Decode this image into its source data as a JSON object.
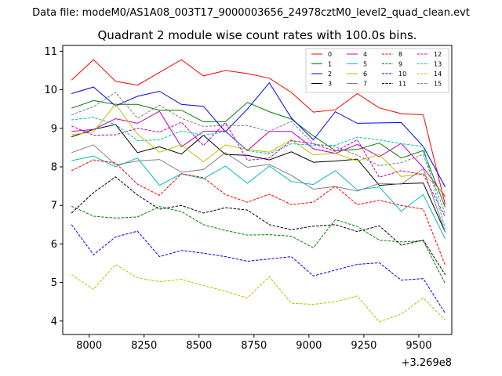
{
  "chart_data": {
    "type": "line",
    "suptitle": "Data file: modeM0/AS1A08_003T17_9000003656_24978cztM0_level2_quad_clean.evt",
    "title": "Quadrant 2 module wise count rates with 100.0s bins.",
    "xlabel": "",
    "ylabel": "",
    "x_offset_label": "+3.269e8",
    "xlim": [
      7880,
      9650
    ],
    "ylim": [
      3.65,
      11.15
    ],
    "xticks": [
      8000,
      8250,
      8500,
      8750,
      9000,
      9250,
      9500
    ],
    "yticks": [
      4,
      5,
      6,
      7,
      8,
      9,
      10,
      11
    ],
    "legend_position": "upper-right",
    "legend_columns": 4,
    "x": [
      7920,
      8020,
      8120,
      8220,
      8320,
      8420,
      8520,
      8620,
      8720,
      8820,
      8920,
      9020,
      9120,
      9220,
      9320,
      9420,
      9520,
      9620
    ],
    "series": [
      {
        "name": "0",
        "color": "#ff0000",
        "dash": "solid",
        "values": [
          10.25,
          10.78,
          10.22,
          10.12,
          10.45,
          10.78,
          10.36,
          10.5,
          10.42,
          10.3,
          9.93,
          9.42,
          9.48,
          9.9,
          9.53,
          9.38,
          9.35,
          7.02
        ]
      },
      {
        "name": "1",
        "color": "#008000",
        "dash": "solid",
        "values": [
          9.52,
          9.72,
          9.62,
          9.62,
          9.47,
          9.47,
          9.17,
          9.17,
          9.67,
          9.43,
          9.24,
          8.8,
          8.42,
          8.45,
          8.62,
          8.23,
          8.42,
          6.95
        ]
      },
      {
        "name": "2",
        "color": "#0000ff",
        "dash": "solid",
        "values": [
          9.9,
          10.07,
          9.58,
          9.83,
          9.96,
          9.62,
          9.57,
          8.91,
          9.5,
          10.18,
          9.27,
          8.7,
          9.43,
          9.13,
          9.14,
          9.15,
          8.53,
          7.48
        ]
      },
      {
        "name": "3",
        "color": "#000000",
        "dash": "solid",
        "values": [
          8.78,
          8.97,
          9.1,
          8.37,
          8.52,
          8.33,
          8.82,
          8.32,
          8.3,
          8.18,
          8.39,
          8.12,
          8.15,
          8.2,
          7.52,
          7.56,
          7.58,
          6.3
        ]
      },
      {
        "name": "4",
        "color": "#c000c0",
        "dash": "solid",
        "values": [
          8.92,
          8.97,
          9.25,
          9.13,
          9.44,
          8.52,
          8.92,
          8.93,
          8.42,
          8.92,
          8.92,
          8.47,
          8.35,
          8.58,
          8.26,
          8.61,
          7.98,
          7.22
        ]
      },
      {
        "name": "5",
        "color": "#00bfbf",
        "dash": "solid",
        "values": [
          8.16,
          8.28,
          8.0,
          8.23,
          7.52,
          7.82,
          7.69,
          8.02,
          7.57,
          8.02,
          7.62,
          7.54,
          7.9,
          7.4,
          7.48,
          6.85,
          7.28,
          6.13
        ]
      },
      {
        "name": "6",
        "color": "#bfbf00",
        "dash": "solid",
        "values": [
          8.84,
          8.9,
          9.63,
          8.85,
          8.38,
          8.57,
          8.13,
          8.57,
          8.45,
          8.38,
          8.7,
          8.31,
          8.35,
          8.15,
          8.32,
          7.75,
          7.82,
          7.27
        ]
      },
      {
        "name": "7",
        "color": "#808080",
        "dash": "solid",
        "values": [
          8.37,
          8.57,
          8.05,
          8.15,
          8.19,
          7.86,
          7.93,
          8.37,
          7.99,
          8.06,
          7.78,
          7.42,
          7.49,
          7.37,
          7.57,
          7.55,
          7.95,
          6.3
        ]
      },
      {
        "name": "8",
        "color": "#ff0000",
        "dash": "dashed",
        "values": [
          7.9,
          8.18,
          8.1,
          7.55,
          7.26,
          7.82,
          7.72,
          7.28,
          7.08,
          7.29,
          7.02,
          7.08,
          7.5,
          7.02,
          7.13,
          7.0,
          6.9,
          5.45
        ]
      },
      {
        "name": "9",
        "color": "#008000",
        "dash": "dashed",
        "values": [
          6.98,
          6.72,
          6.67,
          6.7,
          6.97,
          6.84,
          6.5,
          6.35,
          6.23,
          6.24,
          6.2,
          5.9,
          6.63,
          6.45,
          6.1,
          6.05,
          6.08,
          4.97
        ]
      },
      {
        "name": "10",
        "color": "#0000ff",
        "dash": "dashed",
        "values": [
          6.5,
          5.72,
          6.18,
          6.33,
          5.67,
          5.83,
          5.76,
          5.67,
          5.55,
          5.61,
          5.67,
          5.17,
          5.32,
          5.47,
          5.51,
          5.06,
          5.1,
          4.2
        ]
      },
      {
        "name": "11",
        "color": "#000000",
        "dash": "dashed",
        "values": [
          6.8,
          7.33,
          7.74,
          7.27,
          6.9,
          7.0,
          6.8,
          6.94,
          6.88,
          6.5,
          6.37,
          6.46,
          6.5,
          6.32,
          6.47,
          5.97,
          6.1,
          5.2
        ]
      },
      {
        "name": "12",
        "color": "#c000c0",
        "dash": "dashed",
        "values": [
          9.06,
          8.82,
          8.83,
          9.0,
          8.9,
          9.16,
          8.55,
          9.15,
          8.17,
          8.23,
          8.68,
          8.6,
          8.4,
          8.7,
          7.73,
          7.9,
          7.8,
          6.7
        ]
      },
      {
        "name": "13",
        "color": "#00bfbf",
        "dash": "dashed",
        "values": [
          9.22,
          9.28,
          9.1,
          8.68,
          8.7,
          8.93,
          8.82,
          8.91,
          8.42,
          8.34,
          8.6,
          8.56,
          8.56,
          8.77,
          8.7,
          8.6,
          8.53,
          6.38
        ]
      },
      {
        "name": "14",
        "color": "#bfbf00",
        "dash": "dashed",
        "values": [
          5.2,
          4.82,
          5.47,
          5.12,
          5.02,
          5.08,
          4.92,
          4.77,
          4.6,
          5.15,
          4.46,
          4.43,
          4.5,
          4.65,
          3.98,
          4.18,
          4.6,
          4.02
        ]
      },
      {
        "name": "15",
        "color": "#808080",
        "dash": "dashed",
        "values": [
          9.35,
          9.56,
          9.93,
          9.26,
          9.6,
          9.26,
          9.05,
          9.07,
          9.07,
          8.92,
          9.18,
          8.6,
          8.52,
          8.3,
          8.03,
          8.11,
          8.32,
          6.78
        ]
      }
    ]
  }
}
